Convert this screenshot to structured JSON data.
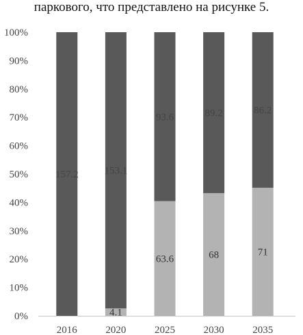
{
  "caption": "паркового, что представлено на рисунке 5.",
  "chart_data": {
    "type": "bar",
    "stacked": "percent",
    "categories": [
      "2016",
      "2020",
      "2025",
      "2030",
      "2035"
    ],
    "series": [
      {
        "values": [
          0,
          4.1,
          63.6,
          68,
          71
        ],
        "color": "#b3b3b3",
        "label_color": "#333333"
      },
      {
        "values": [
          157.2,
          153.1,
          93.6,
          89.2,
          86.2
        ],
        "color": "#595959",
        "label_color": "#444444"
      }
    ],
    "value_labels": [
      [
        "",
        "4.1",
        "63.6",
        "68",
        "71"
      ],
      [
        "157.2",
        "153.1",
        "93.6",
        "89.2",
        "86.2"
      ]
    ],
    "y_ticks": [
      "0%",
      "10%",
      "20%",
      "30%",
      "40%",
      "50%",
      "60%",
      "70%",
      "80%",
      "90%",
      "100%"
    ],
    "ylim": [
      0,
      100
    ],
    "grid": false,
    "legend": "none"
  }
}
